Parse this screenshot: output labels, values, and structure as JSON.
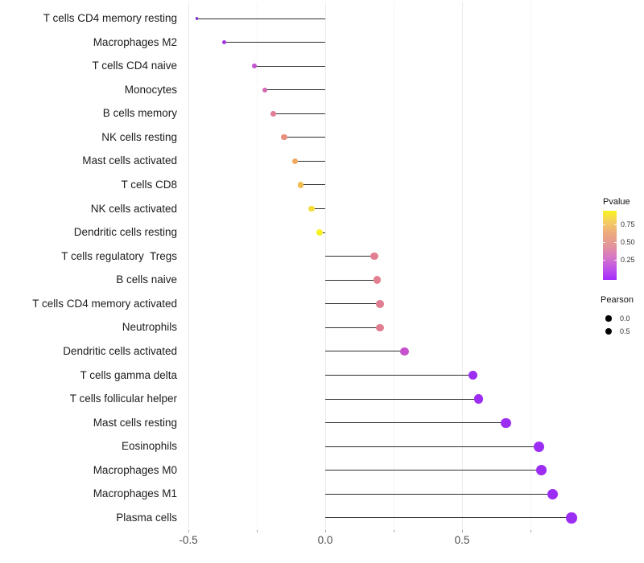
{
  "chart_data": {
    "type": "lollipop",
    "title": "",
    "xlabel": "",
    "ylabel": "",
    "orientation": "horizontal",
    "x_axis": {
      "ticks": [
        "-0.5",
        "0.0",
        "0.5"
      ],
      "tick_values": [
        -0.5,
        0.0,
        0.5
      ],
      "gridline_values": [
        -0.5,
        -0.25,
        0.0,
        0.25,
        0.5,
        0.75
      ],
      "range": [
        -0.55,
        0.97
      ],
      "grid": "vertical-only"
    },
    "points": [
      {
        "label": "T cells CD4 memory resting",
        "pearson": -0.47,
        "pvalue_color": "#7E2AD2"
      },
      {
        "label": "Macrophages M2",
        "pearson": -0.37,
        "pvalue_color": "#A139E2"
      },
      {
        "label": "T cells CD4 naive",
        "pearson": -0.26,
        "pvalue_color": "#C355CE"
      },
      {
        "label": "Monocytes",
        "pearson": -0.22,
        "pvalue_color": "#D168B4"
      },
      {
        "label": "B cells memory",
        "pearson": -0.19,
        "pvalue_color": "#E07E97"
      },
      {
        "label": "NK cells resting",
        "pearson": -0.15,
        "pvalue_color": "#E88F7B"
      },
      {
        "label": "Mast cells activated",
        "pearson": -0.11,
        "pvalue_color": "#EFA95D"
      },
      {
        "label": "T cells CD8",
        "pearson": -0.09,
        "pvalue_color": "#F2BD4F"
      },
      {
        "label": "NK cells activated",
        "pearson": -0.05,
        "pvalue_color": "#F5DC3A"
      },
      {
        "label": "Dendritic cells resting",
        "pearson": -0.02,
        "pvalue_color": "#F8F222"
      },
      {
        "label": "T cells regulatory  Tregs",
        "pearson": 0.18,
        "pvalue_color": "#E08092"
      },
      {
        "label": "B cells naive",
        "pearson": 0.19,
        "pvalue_color": "#E08092"
      },
      {
        "label": "T cells CD4 memory activated",
        "pearson": 0.2,
        "pvalue_color": "#DF7E90"
      },
      {
        "label": "Neutrophils",
        "pearson": 0.2,
        "pvalue_color": "#DF7E90"
      },
      {
        "label": "Dendritic cells activated",
        "pearson": 0.29,
        "pvalue_color": "#C750CE"
      },
      {
        "label": "T cells gamma delta",
        "pearson": 0.54,
        "pvalue_color": "#9C2DF3"
      },
      {
        "label": "T cells follicular helper",
        "pearson": 0.56,
        "pvalue_color": "#9C2DF3"
      },
      {
        "label": "Mast cells resting",
        "pearson": 0.66,
        "pvalue_color": "#9C2DF3"
      },
      {
        "label": "Eosinophils",
        "pearson": 0.78,
        "pvalue_color": "#9C2DF3"
      },
      {
        "label": "Macrophages M0",
        "pearson": 0.79,
        "pvalue_color": "#9C2DF3"
      },
      {
        "label": "Macrophages M1",
        "pearson": 0.83,
        "pvalue_color": "#9C2DF3"
      },
      {
        "label": "Plasma cells",
        "pearson": 0.9,
        "pvalue_color": "#9C2DF3"
      }
    ],
    "legend": {
      "position": "right",
      "pvalue": {
        "title": "Pvalue",
        "labels": [
          "0.75",
          "0.50",
          "0.25"
        ],
        "gradient_top_to_bottom": [
          "#FAF31F",
          "#F4CB62",
          "#ECA87E",
          "#E39599",
          "#D679C4",
          "#BF54E8",
          "#A32BFA"
        ]
      },
      "pearson": {
        "title": "Pearson",
        "dot_color": "#000000",
        "items": [
          {
            "label": "0.0",
            "radius_px": 3.6
          },
          {
            "label": "0.5",
            "radius_px": 4.4
          }
        ]
      }
    },
    "colors": {
      "stem": "#2e2e2e",
      "grid_major": "#ececec",
      "grid_minor": "#f5f5f5",
      "tick_label": "#4d4d4d",
      "category_label": "#1c1c1c",
      "background": "#ffffff"
    }
  }
}
